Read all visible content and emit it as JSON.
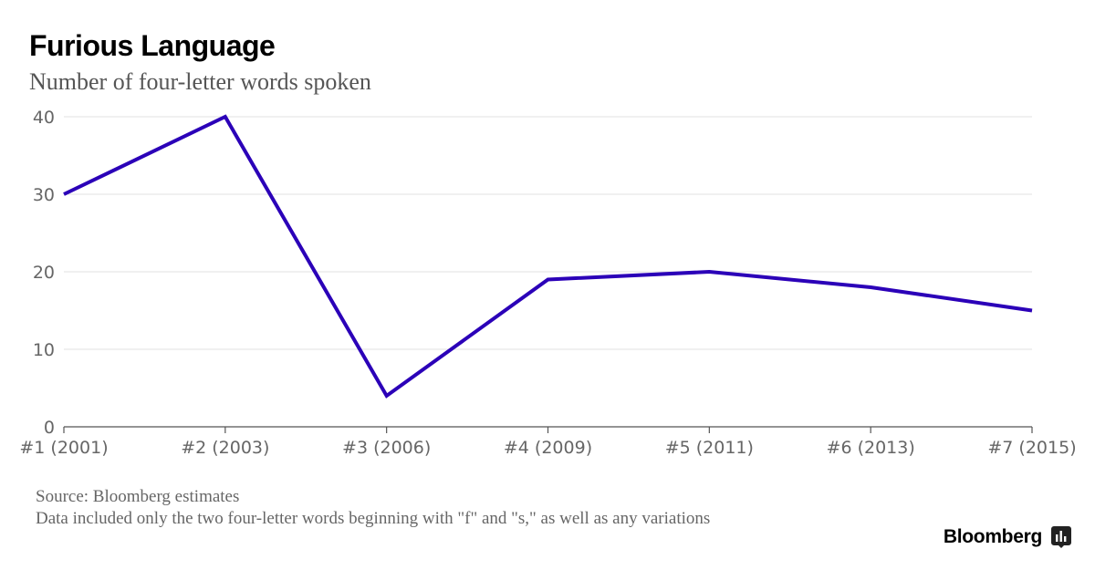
{
  "header": {
    "title": "Furious Language",
    "subtitle": "Number of four-letter words spoken"
  },
  "footer": {
    "source": "Source: Bloomberg estimates",
    "note": "Data included only the two four-letter words beginning with \"f\" and \"s,\" as well as any variations"
  },
  "brand": {
    "name": "Bloomberg",
    "logo_icon": "bloomberg-bars-icon"
  },
  "chart_data": {
    "type": "line",
    "title": "Furious Language",
    "subtitle": "Number of four-letter words spoken",
    "xlabel": "",
    "ylabel": "",
    "categories": [
      "#1 (2001)",
      "#2 (2003)",
      "#3 (2006)",
      "#4 (2009)",
      "#5 (2011)",
      "#6 (2013)",
      "#7 (2015)"
    ],
    "series": [
      {
        "values": [
          30,
          40,
          4,
          19,
          20,
          18,
          15
        ],
        "color": "#2b00b8"
      }
    ],
    "ylim": [
      0,
      40
    ],
    "yticks": [
      0,
      10,
      20,
      30,
      40
    ],
    "grid": true,
    "legend": "none"
  }
}
